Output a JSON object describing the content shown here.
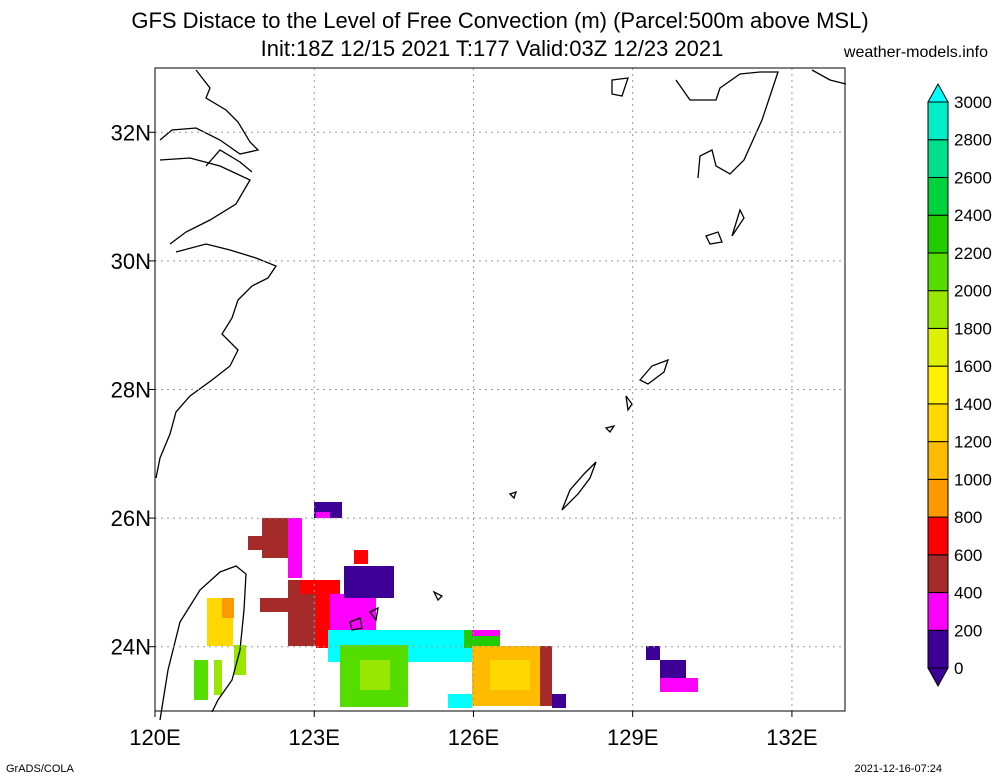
{
  "header": {
    "title_line1": "GFS Distace to the Level of Free Convection (m) (Parcel:500m above MSL)",
    "title_line2": "Init:18Z 12/15 2021 T:177 Valid:03Z 12/23 2021",
    "site": "weather-models.info"
  },
  "footer": {
    "left": "GrADS/COLA",
    "right": "2021-12-16-07:24"
  },
  "map": {
    "lon_labels": [
      "120E",
      "123E",
      "126E",
      "129E",
      "132E"
    ],
    "lat_labels": [
      "24N",
      "26N",
      "28N",
      "30N",
      "32N"
    ],
    "lon_values": [
      120,
      123,
      126,
      129,
      132
    ],
    "lat_values": [
      24,
      26,
      28,
      30,
      32
    ],
    "lon_range": [
      120,
      133
    ],
    "lat_range": [
      23,
      33
    ],
    "grid": "dotted"
  },
  "colorbar": {
    "labels": [
      "0",
      "200",
      "400",
      "600",
      "800",
      "1000",
      "1200",
      "1400",
      "1600",
      "1800",
      "2000",
      "2200",
      "2400",
      "2600",
      "2800",
      "3000"
    ],
    "colors": [
      "#3c0096",
      "#ff00ff",
      "#a52a2a",
      "#ff0000",
      "#ff9900",
      "#ffbb00",
      "#ffd800",
      "#fff000",
      "#ddf000",
      "#99e600",
      "#55dd00",
      "#22cc00",
      "#00d23c",
      "#00e08c",
      "#00eec8",
      "#00ffff"
    ]
  }
}
